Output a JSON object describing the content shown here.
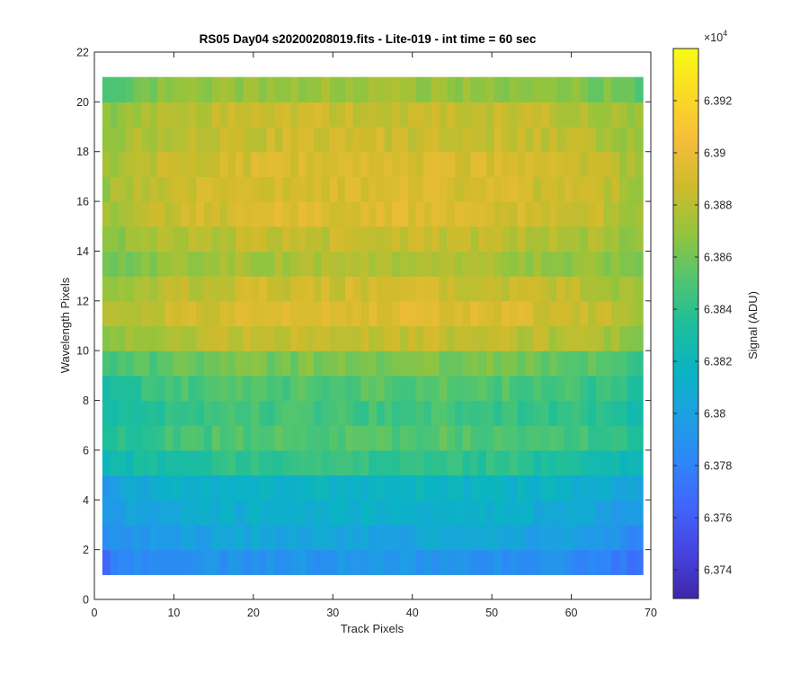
{
  "chart_data": {
    "type": "heatmap",
    "title": "RS05 Day04  s20200208019.fits - Lite-019 - int time = 60 sec",
    "xlabel": "Track Pixels",
    "ylabel": "Wavelength Pixels",
    "xlim": [
      0,
      70
    ],
    "ylim": [
      0,
      22
    ],
    "xticks": [
      "0",
      "10",
      "20",
      "30",
      "40",
      "50",
      "60",
      "70"
    ],
    "yticks": [
      "0",
      "2",
      "4",
      "6",
      "8",
      "10",
      "12",
      "14",
      "16",
      "18",
      "20",
      "22"
    ],
    "x_range": [
      1,
      69
    ],
    "y_range": [
      1,
      21
    ],
    "colorbar": {
      "label": "Signal (ADU)",
      "exponent_label": "×10",
      "exponent": "4",
      "clim": [
        6.3729,
        6.394
      ],
      "ticks": [
        6.374,
        6.376,
        6.378,
        6.38,
        6.382,
        6.384,
        6.386,
        6.388,
        6.39,
        6.392
      ],
      "tick_labels": [
        "6.374",
        "6.376",
        "6.378",
        "6.38",
        "6.382",
        "6.384",
        "6.386",
        "6.388",
        "6.39",
        "6.392"
      ]
    },
    "colormap": "parula",
    "grid": false,
    "row_profile": [
      6.3788,
      6.38,
      6.3808,
      6.3814,
      6.3836,
      6.3848,
      6.3842,
      6.3848,
      6.3858,
      6.388,
      6.389,
      6.3884,
      6.3872,
      6.388,
      6.3889,
      6.3888,
      6.3888,
      6.3883,
      6.3882,
      6.3868
    ],
    "column_profile_offset": [
      -0.0016,
      -0.0014,
      -0.0011,
      -0.0009,
      -0.0007,
      -0.0006,
      -0.0005,
      -0.0004,
      -0.0003,
      -0.0002,
      -0.0001,
      -0.0001,
      0.0,
      0.0,
      0.0001,
      0.0001,
      0.0002,
      0.0002,
      0.0002,
      0.0003,
      0.0003,
      0.0003,
      0.0003,
      0.0003,
      0.0003,
      0.0004,
      0.0004,
      0.0004,
      0.0004,
      0.0004,
      0.0004,
      0.0004,
      0.0004,
      0.0004,
      0.0004,
      0.0004,
      0.0004,
      0.0004,
      0.0004,
      0.0004,
      0.0004,
      0.0004,
      0.0004,
      0.0004,
      0.0003,
      0.0003,
      0.0003,
      0.0003,
      0.0003,
      0.0003,
      0.0002,
      0.0002,
      0.0002,
      0.0001,
      0.0001,
      0.0,
      0.0,
      -0.0001,
      -0.0001,
      -0.0002,
      -0.0003,
      -0.0004,
      -0.0005,
      -0.0006,
      -0.0007,
      -0.0009,
      -0.0011,
      -0.0013,
      -0.0015
    ]
  }
}
